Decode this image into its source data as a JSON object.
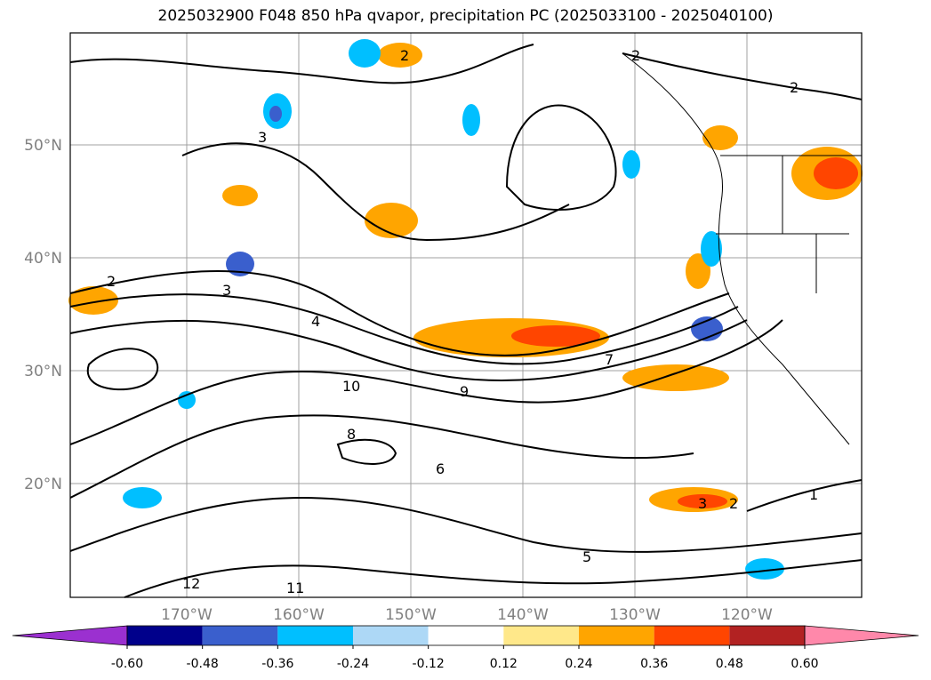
{
  "title": "2025032900 F048 850 hPa qvapor, precipitation PC (2025033100 - 2025040100)",
  "map": {
    "lon_ticks": [
      {
        "lon": -170,
        "label": "170°W"
      },
      {
        "lon": -160,
        "label": "160°W"
      },
      {
        "lon": -150,
        "label": "150°W"
      },
      {
        "lon": -140,
        "label": "140°W"
      },
      {
        "lon": -130,
        "label": "130°W"
      },
      {
        "lon": -120,
        "label": "120°W"
      }
    ],
    "lat_ticks": [
      {
        "lat": 50,
        "label": "50°N"
      },
      {
        "lat": 40,
        "label": "40°N"
      },
      {
        "lat": 30,
        "label": "30°N"
      },
      {
        "lat": 20,
        "label": "20°N"
      }
    ],
    "contour_labels": [
      "2",
      "3",
      "4",
      "7",
      "9",
      "10",
      "6",
      "8",
      "5",
      "11",
      "12",
      "1"
    ]
  },
  "colorbar": {
    "colors": [
      "#9b30d0",
      "#00008b",
      "#3a5fcd",
      "#00bfff",
      "#add8f6",
      "#ffffff",
      "#ffe88a",
      "#ffa500",
      "#ff4500",
      "#b22222",
      "#ff88aa"
    ],
    "labels": [
      "-0.60",
      "-0.48",
      "-0.36",
      "-0.24",
      "-0.12",
      "0.12",
      "0.24",
      "0.36",
      "0.48",
      "0.60"
    ]
  }
}
